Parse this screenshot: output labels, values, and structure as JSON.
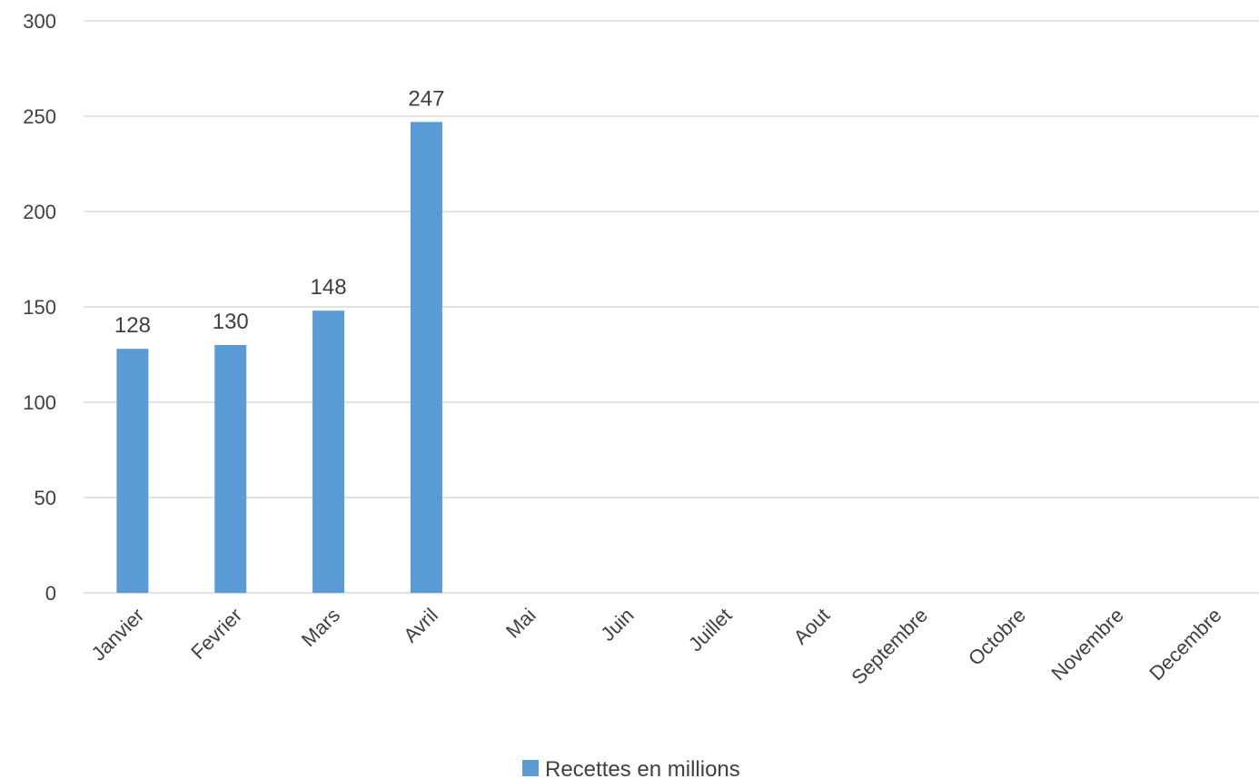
{
  "chart_data": {
    "type": "bar",
    "title": "",
    "xlabel": "",
    "ylabel": "",
    "categories": [
      "Janvier",
      "Fevrier",
      "Mars",
      "Avril",
      "Mai",
      "Juin",
      "Juillet",
      "Aout",
      "Septembre",
      "Octobre",
      "Novembre",
      "Decembre"
    ],
    "series": [
      {
        "name": "Recettes en millions",
        "values": [
          128,
          130,
          148,
          247,
          null,
          null,
          null,
          null,
          null,
          null,
          null,
          null
        ],
        "color": "#5b9bd5"
      }
    ],
    "ylim": [
      0,
      300
    ],
    "yticks": [
      0,
      50,
      100,
      150,
      200,
      250,
      300
    ],
    "data_labels": true,
    "grid": true,
    "legend": "bottom-center"
  }
}
